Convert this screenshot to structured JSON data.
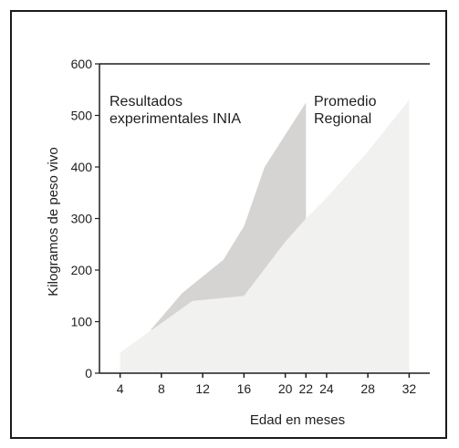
{
  "chart_data": {
    "type": "area",
    "xlabel": "Edad en meses",
    "ylabel": "Kilogramos de peso vivo",
    "xlim": [
      2,
      34
    ],
    "ylim": [
      0,
      600
    ],
    "x_ticks": [
      4,
      8,
      12,
      16,
      20,
      22,
      24,
      28,
      32
    ],
    "y_ticks": [
      0,
      100,
      200,
      300,
      400,
      500,
      600
    ],
    "grid": false,
    "legend": "none",
    "series": [
      {
        "name": "Resultados experimentales INIA",
        "color": "#d6d4d2",
        "x": [
          7,
          10,
          14,
          16,
          18,
          22
        ],
        "y": [
          85,
          155,
          220,
          285,
          400,
          525
        ]
      },
      {
        "name": "Promedio Regional",
        "color": "#f1f1f0",
        "x": [
          4,
          11,
          16,
          20,
          22,
          24,
          28,
          32
        ],
        "y": [
          40,
          140,
          150,
          255,
          300,
          340,
          430,
          530
        ]
      }
    ],
    "annotations": [
      {
        "lines": [
          "Resultados",
          "experimentales INIA"
        ]
      },
      {
        "lines": [
          "Promedio",
          "Regional"
        ]
      }
    ]
  }
}
